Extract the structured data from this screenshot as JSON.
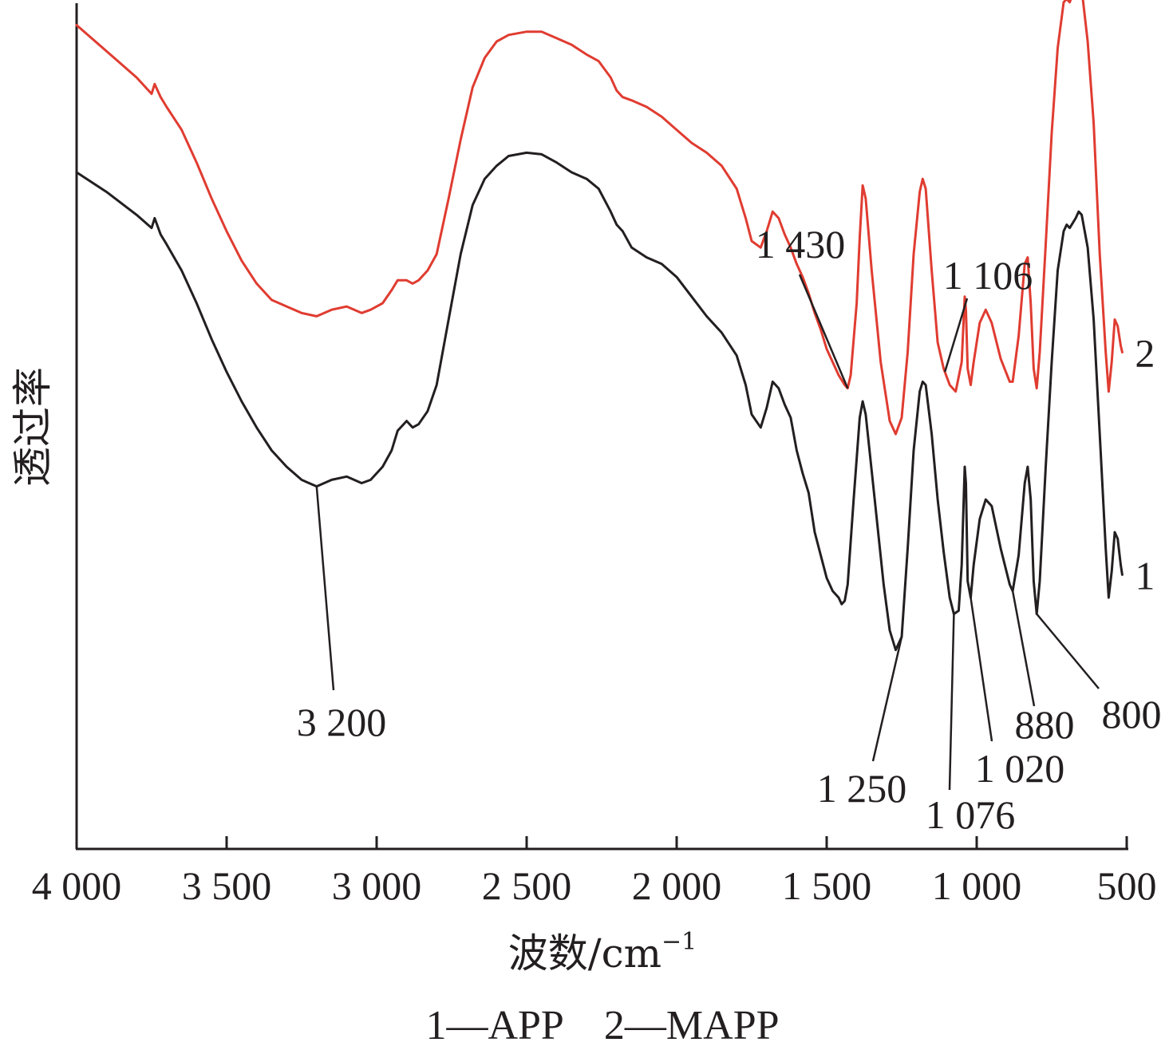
{
  "chart_data": {
    "type": "line",
    "xlabel": "波数/cm",
    "xlabel_sup": "−1",
    "ylabel": "透过率",
    "xlim": [
      4000,
      500
    ],
    "x_reversed": true,
    "x_ticks": [
      4000,
      3500,
      3000,
      2500,
      2000,
      1500,
      1000,
      500
    ],
    "x_tick_labels": [
      "4 000",
      "3 500",
      "3 000",
      "2 500",
      "2 000",
      "1 500",
      "1 000",
      "500"
    ],
    "y_ticks_shown": false,
    "grid": false,
    "caption": "1—APP　2—MAPP",
    "series": [
      {
        "label": "1",
        "color": "#231f20",
        "points": [
          [
            4000,
            0.7
          ],
          [
            3900,
            0.64
          ],
          [
            3800,
            0.57
          ],
          [
            3750,
            0.53
          ],
          [
            3740,
            0.56
          ],
          [
            3720,
            0.51
          ],
          [
            3700,
            0.48
          ],
          [
            3650,
            0.4
          ],
          [
            3600,
            0.3
          ],
          [
            3550,
            0.19
          ],
          [
            3500,
            0.09
          ],
          [
            3450,
            0.0
          ],
          [
            3400,
            -0.08
          ],
          [
            3350,
            -0.15
          ],
          [
            3300,
            -0.2
          ],
          [
            3250,
            -0.24
          ],
          [
            3200,
            -0.26
          ],
          [
            3150,
            -0.24
          ],
          [
            3100,
            -0.23
          ],
          [
            3050,
            -0.25
          ],
          [
            3020,
            -0.24
          ],
          [
            2980,
            -0.2
          ],
          [
            2950,
            -0.15
          ],
          [
            2930,
            -0.09
          ],
          [
            2900,
            -0.06
          ],
          [
            2880,
            -0.08
          ],
          [
            2860,
            -0.07
          ],
          [
            2830,
            -0.03
          ],
          [
            2800,
            0.05
          ],
          [
            2760,
            0.25
          ],
          [
            2720,
            0.45
          ],
          [
            2680,
            0.6
          ],
          [
            2640,
            0.68
          ],
          [
            2600,
            0.72
          ],
          [
            2560,
            0.75
          ],
          [
            2500,
            0.76
          ],
          [
            2450,
            0.755
          ],
          [
            2400,
            0.73
          ],
          [
            2350,
            0.7
          ],
          [
            2300,
            0.68
          ],
          [
            2260,
            0.65
          ],
          [
            2220,
            0.58
          ],
          [
            2200,
            0.54
          ],
          [
            2180,
            0.52
          ],
          [
            2150,
            0.47
          ],
          [
            2100,
            0.44
          ],
          [
            2050,
            0.42
          ],
          [
            2000,
            0.38
          ],
          [
            1950,
            0.32
          ],
          [
            1900,
            0.26
          ],
          [
            1850,
            0.21
          ],
          [
            1800,
            0.14
          ],
          [
            1770,
            0.05
          ],
          [
            1750,
            -0.04
          ],
          [
            1720,
            -0.08
          ],
          [
            1700,
            -0.02
          ],
          [
            1680,
            0.06
          ],
          [
            1660,
            0.04
          ],
          [
            1640,
            -0.01
          ],
          [
            1620,
            -0.05
          ],
          [
            1600,
            -0.15
          ],
          [
            1580,
            -0.22
          ],
          [
            1560,
            -0.28
          ],
          [
            1540,
            -0.4
          ],
          [
            1520,
            -0.47
          ],
          [
            1500,
            -0.54
          ],
          [
            1480,
            -0.58
          ],
          [
            1460,
            -0.6
          ],
          [
            1450,
            -0.62
          ],
          [
            1440,
            -0.61
          ],
          [
            1430,
            -0.56
          ],
          [
            1410,
            -0.3
          ],
          [
            1390,
            -0.05
          ],
          [
            1380,
            0.0
          ],
          [
            1370,
            -0.04
          ],
          [
            1340,
            -0.3
          ],
          [
            1310,
            -0.56
          ],
          [
            1290,
            -0.7
          ],
          [
            1270,
            -0.76
          ],
          [
            1250,
            -0.72
          ],
          [
            1230,
            -0.45
          ],
          [
            1210,
            -0.15
          ],
          [
            1190,
            0.03
          ],
          [
            1180,
            0.06
          ],
          [
            1170,
            0.05
          ],
          [
            1150,
            -0.1
          ],
          [
            1130,
            -0.3
          ],
          [
            1110,
            -0.46
          ],
          [
            1090,
            -0.6
          ],
          [
            1076,
            -0.65
          ],
          [
            1060,
            -0.64
          ],
          [
            1050,
            -0.5
          ],
          [
            1040,
            -0.2
          ],
          [
            1036,
            -0.25
          ],
          [
            1030,
            -0.55
          ],
          [
            1020,
            -0.6
          ],
          [
            1010,
            -0.5
          ],
          [
            990,
            -0.36
          ],
          [
            970,
            -0.3
          ],
          [
            950,
            -0.32
          ],
          [
            920,
            -0.45
          ],
          [
            890,
            -0.56
          ],
          [
            880,
            -0.58
          ],
          [
            860,
            -0.47
          ],
          [
            840,
            -0.25
          ],
          [
            830,
            -0.2
          ],
          [
            820,
            -0.3
          ],
          [
            810,
            -0.55
          ],
          [
            800,
            -0.65
          ],
          [
            790,
            -0.55
          ],
          [
            770,
            -0.2
          ],
          [
            750,
            0.12
          ],
          [
            730,
            0.4
          ],
          [
            710,
            0.52
          ],
          [
            700,
            0.54
          ],
          [
            690,
            0.53
          ],
          [
            670,
            0.56
          ],
          [
            660,
            0.58
          ],
          [
            650,
            0.57
          ],
          [
            630,
            0.47
          ],
          [
            610,
            0.25
          ],
          [
            590,
            -0.1
          ],
          [
            570,
            -0.45
          ],
          [
            560,
            -0.6
          ],
          [
            550,
            -0.52
          ],
          [
            540,
            -0.4
          ],
          [
            530,
            -0.42
          ],
          [
            520,
            -0.5
          ],
          [
            515,
            -0.53
          ]
        ]
      },
      {
        "label": "2",
        "color": "#e03c31",
        "points": [
          [
            4000,
            1.15
          ],
          [
            3900,
            1.07
          ],
          [
            3800,
            0.99
          ],
          [
            3750,
            0.94
          ],
          [
            3740,
            0.97
          ],
          [
            3720,
            0.93
          ],
          [
            3700,
            0.9
          ],
          [
            3650,
            0.83
          ],
          [
            3600,
            0.73
          ],
          [
            3550,
            0.62
          ],
          [
            3500,
            0.52
          ],
          [
            3450,
            0.43
          ],
          [
            3400,
            0.36
          ],
          [
            3350,
            0.31
          ],
          [
            3300,
            0.29
          ],
          [
            3250,
            0.27
          ],
          [
            3200,
            0.26
          ],
          [
            3150,
            0.28
          ],
          [
            3100,
            0.29
          ],
          [
            3050,
            0.27
          ],
          [
            3020,
            0.28
          ],
          [
            2980,
            0.3
          ],
          [
            2950,
            0.34
          ],
          [
            2930,
            0.37
          ],
          [
            2900,
            0.37
          ],
          [
            2880,
            0.36
          ],
          [
            2860,
            0.37
          ],
          [
            2830,
            0.4
          ],
          [
            2800,
            0.45
          ],
          [
            2760,
            0.62
          ],
          [
            2720,
            0.8
          ],
          [
            2680,
            0.96
          ],
          [
            2640,
            1.05
          ],
          [
            2600,
            1.1
          ],
          [
            2560,
            1.12
          ],
          [
            2500,
            1.13
          ],
          [
            2450,
            1.13
          ],
          [
            2400,
            1.11
          ],
          [
            2350,
            1.09
          ],
          [
            2300,
            1.06
          ],
          [
            2260,
            1.04
          ],
          [
            2220,
            0.99
          ],
          [
            2200,
            0.95
          ],
          [
            2180,
            0.93
          ],
          [
            2150,
            0.92
          ],
          [
            2100,
            0.9
          ],
          [
            2050,
            0.87
          ],
          [
            2000,
            0.83
          ],
          [
            1950,
            0.79
          ],
          [
            1900,
            0.76
          ],
          [
            1850,
            0.72
          ],
          [
            1800,
            0.65
          ],
          [
            1770,
            0.56
          ],
          [
            1750,
            0.49
          ],
          [
            1720,
            0.47
          ],
          [
            1700,
            0.52
          ],
          [
            1680,
            0.58
          ],
          [
            1660,
            0.56
          ],
          [
            1640,
            0.51
          ],
          [
            1620,
            0.47
          ],
          [
            1600,
            0.42
          ],
          [
            1580,
            0.38
          ],
          [
            1560,
            0.33
          ],
          [
            1540,
            0.27
          ],
          [
            1520,
            0.22
          ],
          [
            1500,
            0.16
          ],
          [
            1480,
            0.12
          ],
          [
            1460,
            0.08
          ],
          [
            1440,
            0.05
          ],
          [
            1430,
            0.04
          ],
          [
            1420,
            0.08
          ],
          [
            1400,
            0.3
          ],
          [
            1390,
            0.5
          ],
          [
            1380,
            0.66
          ],
          [
            1370,
            0.62
          ],
          [
            1350,
            0.4
          ],
          [
            1320,
            0.12
          ],
          [
            1290,
            -0.06
          ],
          [
            1270,
            -0.1
          ],
          [
            1250,
            -0.05
          ],
          [
            1230,
            0.15
          ],
          [
            1210,
            0.45
          ],
          [
            1190,
            0.64
          ],
          [
            1180,
            0.68
          ],
          [
            1170,
            0.65
          ],
          [
            1150,
            0.4
          ],
          [
            1130,
            0.18
          ],
          [
            1110,
            0.1
          ],
          [
            1090,
            0.05
          ],
          [
            1070,
            0.03
          ],
          [
            1050,
            0.12
          ],
          [
            1040,
            0.32
          ],
          [
            1036,
            0.28
          ],
          [
            1030,
            0.1
          ],
          [
            1020,
            0.05
          ],
          [
            1010,
            0.12
          ],
          [
            990,
            0.24
          ],
          [
            970,
            0.28
          ],
          [
            950,
            0.24
          ],
          [
            920,
            0.13
          ],
          [
            890,
            0.06
          ],
          [
            880,
            0.06
          ],
          [
            860,
            0.2
          ],
          [
            840,
            0.42
          ],
          [
            830,
            0.44
          ],
          [
            820,
            0.3
          ],
          [
            810,
            0.1
          ],
          [
            800,
            0.04
          ],
          [
            790,
            0.15
          ],
          [
            770,
            0.48
          ],
          [
            750,
            0.82
          ],
          [
            730,
            1.08
          ],
          [
            710,
            1.22
          ],
          [
            700,
            1.23
          ],
          [
            690,
            1.22
          ],
          [
            670,
            1.27
          ],
          [
            660,
            1.29
          ],
          [
            650,
            1.26
          ],
          [
            630,
            1.1
          ],
          [
            610,
            0.85
          ],
          [
            590,
            0.45
          ],
          [
            570,
            0.15
          ],
          [
            560,
            0.03
          ],
          [
            550,
            0.12
          ],
          [
            540,
            0.25
          ],
          [
            530,
            0.23
          ],
          [
            520,
            0.17
          ],
          [
            515,
            0.15
          ]
        ]
      }
    ],
    "annotations": [
      {
        "text": "3 200",
        "series": 1,
        "x": 3200
      },
      {
        "text": "1 430",
        "series": 2,
        "x": 1430
      },
      {
        "text": "1 106",
        "series": 2,
        "x": 1106
      },
      {
        "text": "1 250",
        "series": 1,
        "x": 1250
      },
      {
        "text": "1 076",
        "series": 1,
        "x": 1076
      },
      {
        "text": "1 020",
        "series": 1,
        "x": 1020
      },
      {
        "text": "880",
        "series": 1,
        "x": 880
      },
      {
        "text": "800",
        "series": 1,
        "x": 800
      }
    ]
  }
}
